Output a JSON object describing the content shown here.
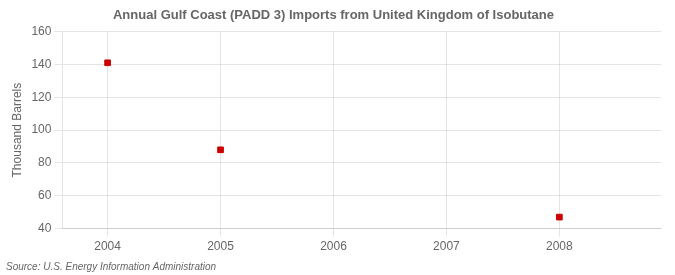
{
  "chart_data": {
    "type": "scatter",
    "title": "Annual Gulf Coast (PADD 3) Imports from United Kingdom of Isobutane",
    "ylabel": "Thousand Barrels",
    "source": "Source: U.S. Energy Information Administration",
    "x": [
      2004,
      2005,
      2008
    ],
    "values": [
      141,
      88,
      47
    ],
    "color": "#cc0000",
    "marker": "square",
    "xlim": [
      2003.6,
      2008.9
    ],
    "xticks": [
      2004,
      2005,
      2006,
      2007,
      2008
    ],
    "ylim": [
      40,
      160
    ],
    "yticks": [
      40,
      60,
      80,
      100,
      120,
      140,
      160
    ],
    "grid": true
  }
}
